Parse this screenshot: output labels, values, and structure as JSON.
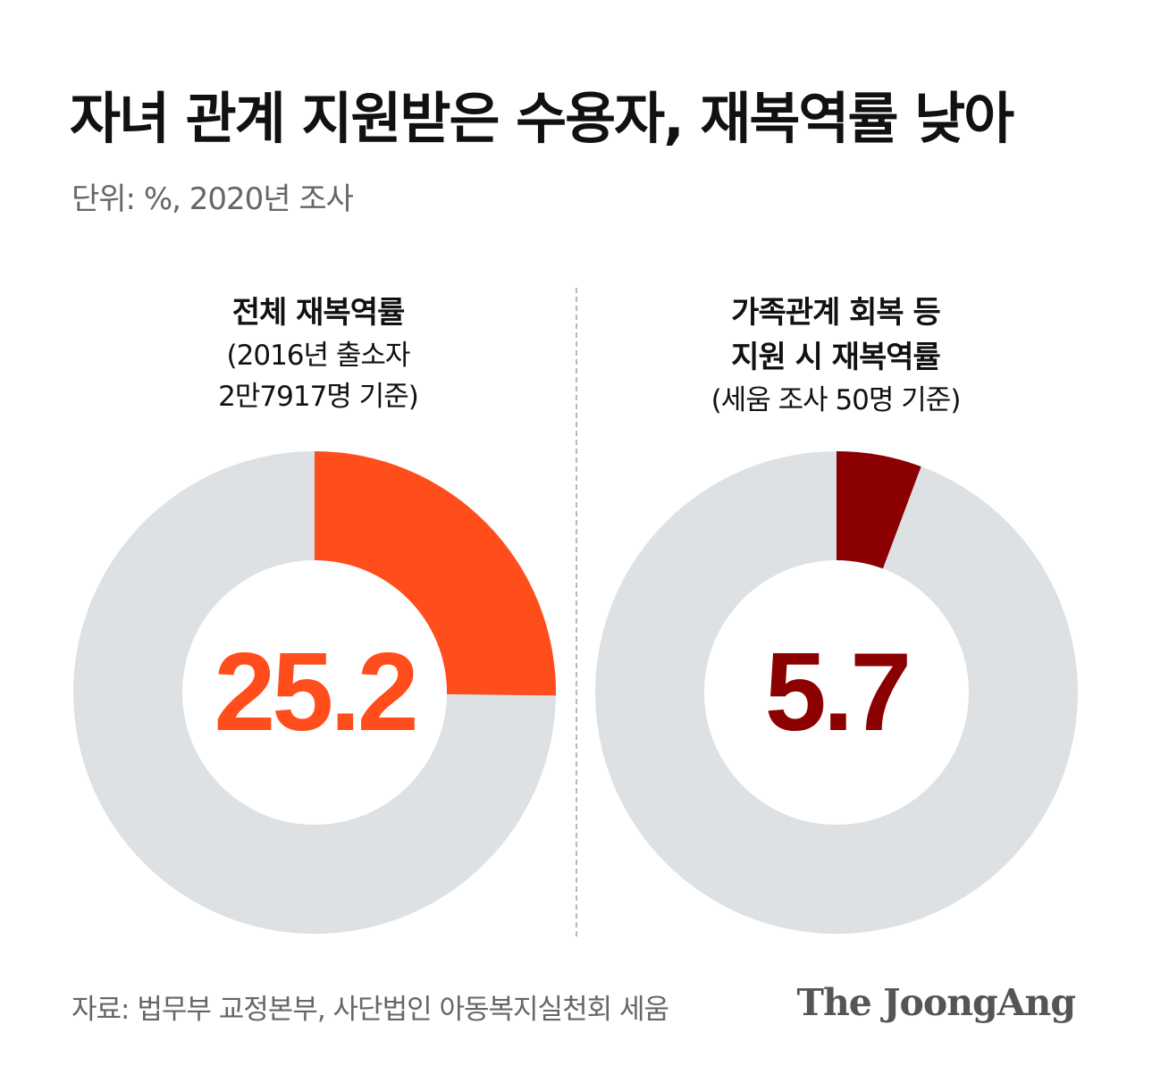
{
  "header": {
    "title": "자녀 관계 지원받은 수용자, 재복역률 낮아",
    "subtitle": "단위: %, 2020년 조사"
  },
  "chart_data": [
    {
      "type": "pie",
      "title": "전체 재복역률",
      "subtitle_lines": [
        "(2016년 출소자",
        "2만7917명 기준)"
      ],
      "value": 25.2,
      "value_label": "25.2",
      "slice_color": "#ff4e1c",
      "track_color": "#dde1e4"
    },
    {
      "type": "pie",
      "title_lines": [
        "가족관계 회복 등",
        "지원 시 재복역률"
      ],
      "subtitle_lines": [
        "(세움 조사 50명 기준)"
      ],
      "value": 5.7,
      "value_label": "5.7",
      "slice_color": "#8b0000",
      "track_color": "#dde1e4"
    }
  ],
  "footer": {
    "source": "자료: 법무부 교정본부, 사단법인 아동복지실천회 세움",
    "brand": "The JoongAng"
  }
}
